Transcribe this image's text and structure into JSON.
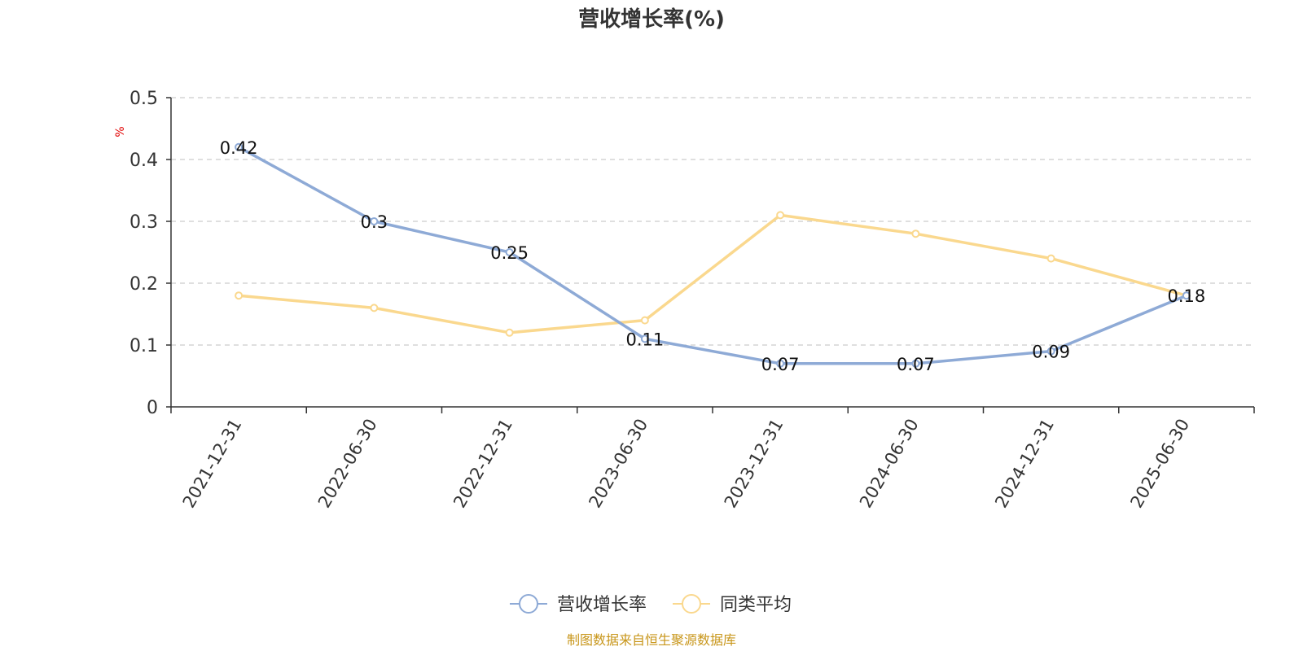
{
  "chart_data": {
    "type": "line",
    "title": "营收增长率(%)",
    "ylabel": "%",
    "ylim": [
      0,
      0.5
    ],
    "yticks": [
      "0",
      "0.1",
      "0.2",
      "0.3",
      "0.4",
      "0.5"
    ],
    "categories": [
      "2021-12-31",
      "2022-06-30",
      "2022-12-31",
      "2023-06-30",
      "2023-12-31",
      "2024-06-30",
      "2024-12-31",
      "2025-06-30"
    ],
    "series": [
      {
        "name": "营收增长率",
        "color": "#8eaad6",
        "values": [
          0.42,
          0.3,
          0.25,
          0.11,
          0.07,
          0.07,
          0.09,
          0.18
        ],
        "labels": [
          "0.42",
          "0.3",
          "0.25",
          "0.11",
          "0.07",
          "0.07",
          "0.09",
          "0.18"
        ]
      },
      {
        "name": "同类平均",
        "color": "#fad88e",
        "values": [
          0.18,
          0.16,
          0.12,
          0.14,
          0.31,
          0.28,
          0.24,
          0.18
        ]
      }
    ],
    "grid": true,
    "legend_position": "bottom-center"
  },
  "source_text": "制图数据来自恒生聚源数据库"
}
